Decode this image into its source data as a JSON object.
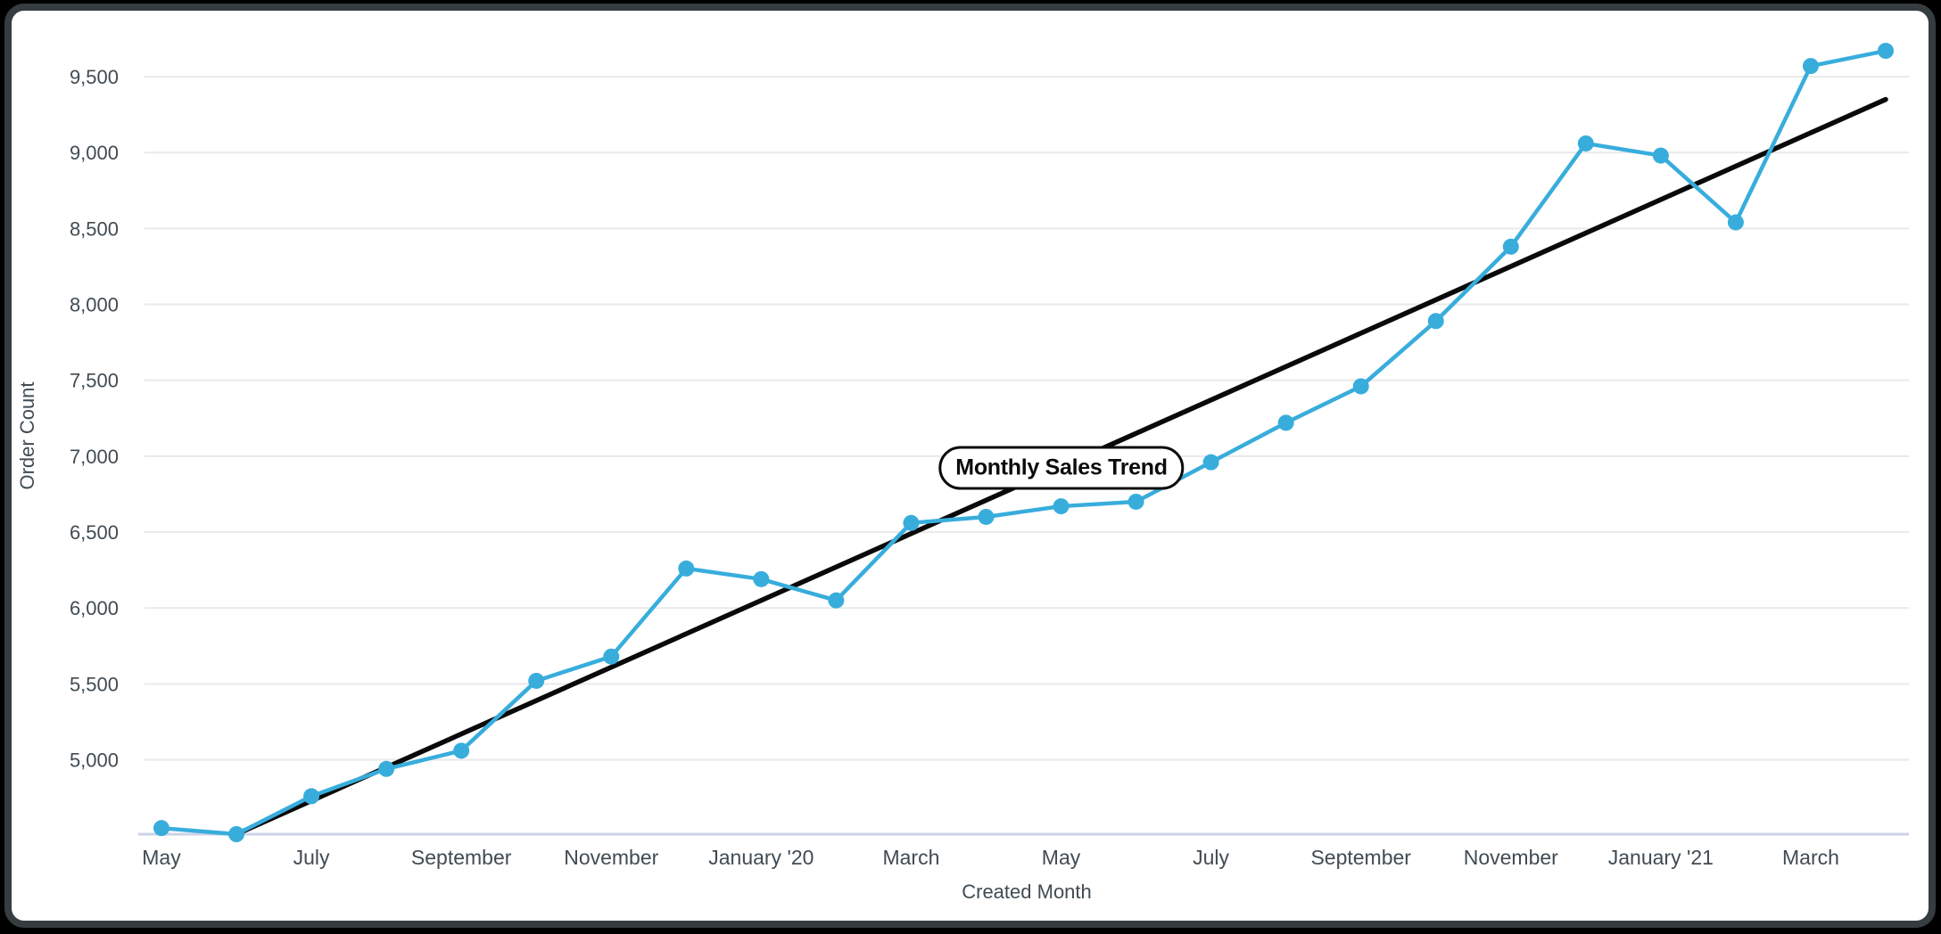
{
  "page": {
    "background_color": "#000000",
    "card_border_color": "#363d40",
    "card_background_color": "#ffffff"
  },
  "chart_data": {
    "type": "line",
    "annotation_label": "Monthly Sales Trend",
    "xlabel": "Created Month",
    "ylabel": "Order Count",
    "legend": "none",
    "grid": "horizontal",
    "categories": [
      "May '19",
      "Jun '19",
      "Jul '19",
      "Aug '19",
      "Sep '19",
      "Oct '19",
      "Nov '19",
      "Dec '19",
      "Jan '20",
      "Feb '20",
      "Mar '20",
      "Apr '20",
      "May '20",
      "Jun '20",
      "Jul '20",
      "Aug '20",
      "Sep '20",
      "Oct '20",
      "Nov '20",
      "Dec '20",
      "Jan '21",
      "Feb '21",
      "Mar '21",
      "Apr '21"
    ],
    "x_tick_labels": [
      "May",
      "July",
      "September",
      "November",
      "January '20",
      "March",
      "May",
      "July",
      "September",
      "November",
      "January '21",
      "March"
    ],
    "x_tick_every": 2,
    "series": [
      {
        "name": "Order Count",
        "color": "#38ADDC",
        "values": [
          4550,
          4510,
          4760,
          4940,
          5060,
          5520,
          5680,
          6260,
          6190,
          6050,
          6560,
          6600,
          6670,
          6700,
          6960,
          7220,
          7460,
          7890,
          8380,
          9060,
          8980,
          8540,
          9570,
          9670
        ]
      }
    ],
    "trend_line": {
      "color": "#0a0a0a",
      "from": {
        "category_index": 1,
        "value": 4510
      },
      "to": {
        "category_index": 23,
        "value": 9350
      }
    },
    "y_ticks": [
      {
        "value": 5000,
        "label": "5,000"
      },
      {
        "value": 5500,
        "label": "5,500"
      },
      {
        "value": 6000,
        "label": "6,000"
      },
      {
        "value": 6500,
        "label": "6,500"
      },
      {
        "value": 7000,
        "label": "7,000"
      },
      {
        "value": 7500,
        "label": "7,500"
      },
      {
        "value": 8000,
        "label": "8,000"
      },
      {
        "value": 8500,
        "label": "8,500"
      },
      {
        "value": 9000,
        "label": "9,000"
      },
      {
        "value": 9500,
        "label": "9,500"
      }
    ],
    "ylim": [
      4510,
      9770
    ],
    "colors": {
      "grid_line": "#e9e9e9",
      "x_axis_line": "#ccd3e8",
      "tick_label": "#414b52"
    }
  }
}
